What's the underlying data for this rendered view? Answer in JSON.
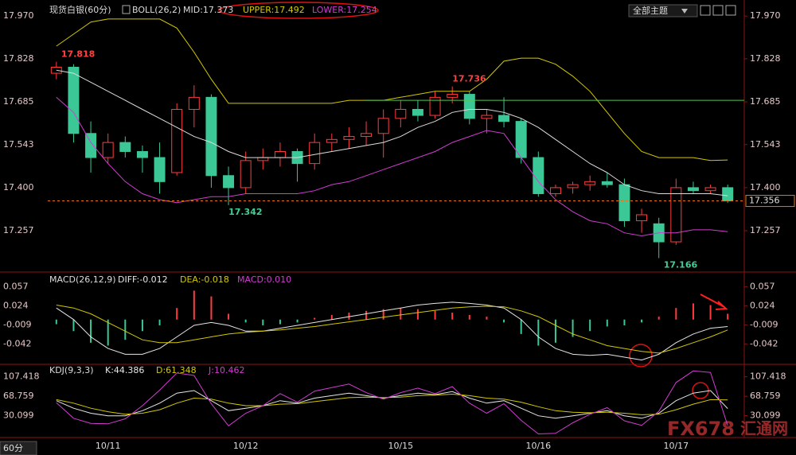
{
  "toolbar": {
    "theme": "全部主题",
    "period": "60分"
  },
  "watermark": {
    "brand": "FX678",
    "name": "汇通网"
  },
  "chart_data": [
    {
      "type": "candlestick",
      "title": "现货白银(60分)",
      "indicator": "BOLL(26,2)",
      "categories": [
        null,
        null,
        null,
        "10/11",
        null,
        null,
        null,
        null,
        null,
        null,
        null,
        "10/12",
        null,
        null,
        null,
        null,
        null,
        null,
        null,
        null,
        "10/15",
        null,
        null,
        null,
        null,
        null,
        null,
        null,
        "10/16",
        null,
        null,
        null,
        null,
        null,
        null,
        null,
        "10/17",
        null,
        null,
        null
      ],
      "candles": {
        "open": [
          17.78,
          17.8,
          17.58,
          17.5,
          17.55,
          17.52,
          17.5,
          17.45,
          17.66,
          17.7,
          17.44,
          17.4,
          17.49,
          17.5,
          17.52,
          17.48,
          17.55,
          17.56,
          17.57,
          17.58,
          17.63,
          17.66,
          17.64,
          17.7,
          17.71,
          17.63,
          17.64,
          17.62,
          17.5,
          17.38,
          17.4,
          17.41,
          17.42,
          17.41,
          17.29,
          17.28,
          17.22,
          17.4,
          17.39,
          17.4
        ],
        "high": [
          17.818,
          17.81,
          17.62,
          17.58,
          17.57,
          17.54,
          17.55,
          17.68,
          17.74,
          17.71,
          17.47,
          17.52,
          17.53,
          17.55,
          17.53,
          17.58,
          17.58,
          17.6,
          17.62,
          17.66,
          17.69,
          17.69,
          17.72,
          17.736,
          17.72,
          17.66,
          17.7,
          17.63,
          17.52,
          17.41,
          17.42,
          17.44,
          17.45,
          17.43,
          17.33,
          17.3,
          17.43,
          17.42,
          17.41,
          17.41
        ],
        "low": [
          17.76,
          17.55,
          17.45,
          17.48,
          17.5,
          17.45,
          17.38,
          17.44,
          17.6,
          17.4,
          17.342,
          17.38,
          17.46,
          17.47,
          17.42,
          17.46,
          17.52,
          17.53,
          17.54,
          17.5,
          17.6,
          17.62,
          17.63,
          17.68,
          17.61,
          17.58,
          17.6,
          17.48,
          17.37,
          17.37,
          17.38,
          17.39,
          17.4,
          17.27,
          17.25,
          17.166,
          17.21,
          17.38,
          17.38,
          17.35
        ],
        "close": [
          17.8,
          17.58,
          17.5,
          17.55,
          17.52,
          17.5,
          17.42,
          17.66,
          17.7,
          17.44,
          17.4,
          17.49,
          17.5,
          17.52,
          17.48,
          17.55,
          17.56,
          17.57,
          17.58,
          17.63,
          17.66,
          17.64,
          17.7,
          17.71,
          17.63,
          17.64,
          17.62,
          17.5,
          17.38,
          17.4,
          17.41,
          17.42,
          17.41,
          17.29,
          17.31,
          17.22,
          17.4,
          17.39,
          17.4,
          17.356
        ],
        "up_color": "#ff3c3c",
        "down_color": "#3cc896"
      },
      "series": [
        {
          "name": "MID:17.373",
          "color": "#dcdcdc",
          "values": [
            17.79,
            17.78,
            17.75,
            17.72,
            17.69,
            17.66,
            17.63,
            17.6,
            17.57,
            17.55,
            17.52,
            17.5,
            17.5,
            17.5,
            17.5,
            17.51,
            17.52,
            17.53,
            17.54,
            17.55,
            17.57,
            17.6,
            17.62,
            17.65,
            17.66,
            17.66,
            17.65,
            17.63,
            17.6,
            17.56,
            17.52,
            17.48,
            17.45,
            17.41,
            17.39,
            17.38,
            17.38,
            17.38,
            17.38,
            17.373
          ]
        },
        {
          "name": "UPPER:17.492",
          "color": "#d2c800",
          "values": [
            17.87,
            17.91,
            17.95,
            17.96,
            17.96,
            17.96,
            17.96,
            17.93,
            17.85,
            17.76,
            17.68,
            17.68,
            17.68,
            17.68,
            17.68,
            17.68,
            17.68,
            17.69,
            17.69,
            17.69,
            17.7,
            17.71,
            17.72,
            17.72,
            17.72,
            17.76,
            17.82,
            17.83,
            17.83,
            17.81,
            17.77,
            17.72,
            17.65,
            17.58,
            17.52,
            17.5,
            17.5,
            17.5,
            17.49,
            17.492
          ]
        },
        {
          "name": "LOWER:17.254",
          "color": "#d23cd2",
          "values": [
            17.7,
            17.65,
            17.55,
            17.48,
            17.42,
            17.38,
            17.36,
            17.35,
            17.36,
            17.37,
            17.37,
            17.38,
            17.38,
            17.38,
            17.38,
            17.39,
            17.41,
            17.42,
            17.44,
            17.46,
            17.48,
            17.5,
            17.52,
            17.55,
            17.57,
            17.59,
            17.58,
            17.5,
            17.42,
            17.36,
            17.32,
            17.29,
            17.28,
            17.25,
            17.24,
            17.25,
            17.25,
            17.26,
            17.26,
            17.254
          ]
        }
      ],
      "last_price": 17.356,
      "horizontal_line": 17.69,
      "ylim": [
        17.125,
        18.01
      ],
      "yticks": [
        {
          "value": 17.97,
          "label": "17.970"
        },
        17.828,
        17.685,
        17.543,
        {
          "value": 17.4,
          "label": "17.400"
        },
        17.257
      ]
    },
    {
      "type": "macd",
      "title": "MACD(26,12,9)",
      "series": [
        {
          "name": "DIFF:-0.012",
          "color": "#e6e6e6",
          "values": [
            0.02,
            0.0,
            -0.03,
            -0.05,
            -0.06,
            -0.06,
            -0.05,
            -0.03,
            -0.01,
            -0.005,
            -0.01,
            -0.02,
            -0.02,
            -0.015,
            -0.01,
            -0.005,
            0.0,
            0.005,
            0.01,
            0.015,
            0.02,
            0.025,
            0.028,
            0.03,
            0.028,
            0.025,
            0.02,
            0.0,
            -0.03,
            -0.05,
            -0.06,
            -0.062,
            -0.06,
            -0.065,
            -0.07,
            -0.06,
            -0.04,
            -0.025,
            -0.015,
            -0.012
          ]
        },
        {
          "name": "DEA:-0.018",
          "color": "#d2c800",
          "values": [
            0.025,
            0.02,
            0.01,
            -0.005,
            -0.02,
            -0.035,
            -0.04,
            -0.04,
            -0.035,
            -0.03,
            -0.025,
            -0.022,
            -0.02,
            -0.018,
            -0.015,
            -0.012,
            -0.008,
            -0.004,
            0.0,
            0.004,
            0.008,
            0.012,
            0.016,
            0.02,
            0.022,
            0.023,
            0.022,
            0.015,
            0.005,
            -0.01,
            -0.025,
            -0.035,
            -0.045,
            -0.05,
            -0.055,
            -0.058,
            -0.05,
            -0.04,
            -0.03,
            -0.018
          ]
        },
        {
          "name": "MACD:0.010",
          "color": "#d23cd2",
          "up_color": "#ff3c3c",
          "down_color": "#3cc896",
          "values": [
            -0.008,
            -0.02,
            -0.04,
            -0.045,
            -0.035,
            -0.02,
            -0.01,
            0.02,
            0.05,
            0.04,
            0.01,
            -0.005,
            -0.01,
            -0.008,
            -0.005,
            0.003,
            0.008,
            0.012,
            0.015,
            0.018,
            0.02,
            0.018,
            0.015,
            0.012,
            0.008,
            0.005,
            -0.005,
            -0.025,
            -0.045,
            -0.04,
            -0.03,
            -0.02,
            -0.012,
            -0.01,
            -0.005,
            0.005,
            0.02,
            0.028,
            0.025,
            0.01
          ]
        }
      ],
      "ylim": [
        -0.076,
        0.078
      ],
      "yticks": [
        0.057,
        0.024,
        -0.009,
        -0.042
      ]
    },
    {
      "type": "kdj",
      "title": "KDJ(9,3,3)",
      "series": [
        {
          "name": "K:44.386",
          "color": "#e6e6e6",
          "values": [
            60,
            45,
            35,
            30,
            30,
            40,
            55,
            75,
            80,
            60,
            40,
            45,
            50,
            60,
            55,
            65,
            70,
            75,
            70,
            65,
            70,
            75,
            72,
            78,
            65,
            55,
            60,
            45,
            30,
            25,
            30,
            35,
            40,
            30,
            25,
            35,
            60,
            75,
            80,
            44.386
          ]
        },
        {
          "name": "D:61.348",
          "color": "#d2c800",
          "values": [
            62,
            55,
            45,
            38,
            33,
            35,
            42,
            55,
            65,
            63,
            55,
            50,
            50,
            53,
            54,
            58,
            62,
            66,
            67,
            66,
            67,
            70,
            71,
            73,
            70,
            65,
            63,
            57,
            48,
            40,
            37,
            36,
            37,
            35,
            32,
            33,
            42,
            53,
            62,
            61.348
          ]
        },
        {
          "name": "J:10.462",
          "color": "#d23cd2",
          "values": [
            56,
            25,
            15,
            14,
            24,
            50,
            81,
            115,
            110,
            54,
            10,
            35,
            50,
            74,
            57,
            79,
            86,
            93,
            76,
            63,
            76,
            85,
            74,
            88,
            55,
            35,
            54,
            21,
            -6,
            -5,
            16,
            33,
            46,
            20,
            11,
            39,
            96,
            119,
            116,
            10.462
          ]
        }
      ],
      "ylim": [
        -10,
        129
      ],
      "yticks": [
        107.418,
        68.759,
        30.099
      ]
    }
  ]
}
